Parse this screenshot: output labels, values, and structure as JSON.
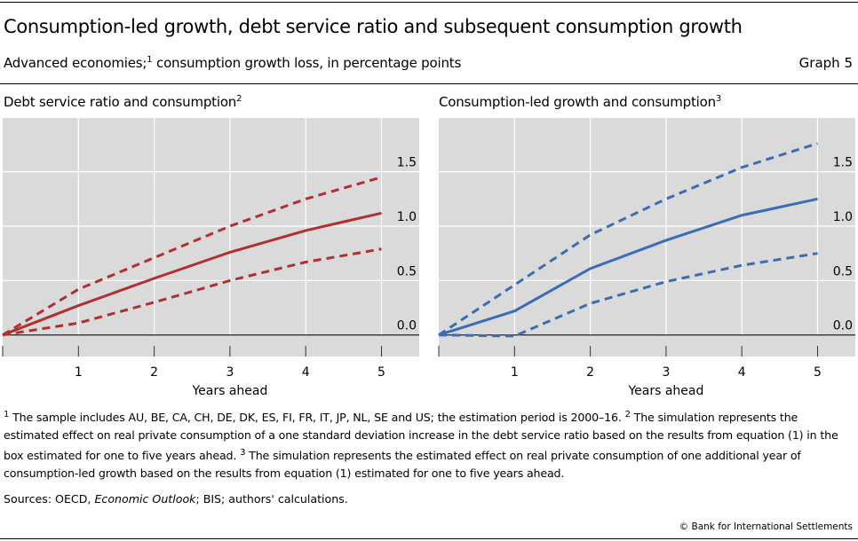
{
  "header": {
    "title": "Consumption-led growth, debt service ratio and subsequent consumption growth",
    "subtitle_pre": "Advanced economies;",
    "subtitle_sup": "1",
    "subtitle_post": " consumption growth loss, in percentage points",
    "graph_number": "Graph 5"
  },
  "chart_data": [
    {
      "type": "line",
      "title": "Debt service ratio and consumption",
      "title_sup": "2",
      "xlabel": "Years ahead",
      "ylabel": "",
      "x": [
        0,
        1,
        2,
        3,
        4,
        5
      ],
      "xticks": [
        "1",
        "2",
        "3",
        "4",
        "5"
      ],
      "yticks": [
        "0.0",
        "0.5",
        "1.0",
        "1.5"
      ],
      "ylim": [
        -0.1,
        2.0
      ],
      "xlim": [
        0,
        5.5
      ],
      "grid": true,
      "color": "#b03030",
      "series": [
        {
          "style": "solid",
          "values": [
            0,
            0.27,
            0.52,
            0.76,
            0.96,
            1.12
          ]
        },
        {
          "style": "dashed",
          "values": [
            0,
            0.42,
            0.71,
            1.0,
            1.25,
            1.45
          ]
        },
        {
          "style": "dashed",
          "values": [
            0,
            0.11,
            0.3,
            0.5,
            0.67,
            0.79
          ]
        }
      ]
    },
    {
      "type": "line",
      "title": "Consumption-led growth and consumption",
      "title_sup": "3",
      "xlabel": "Years ahead",
      "ylabel": "",
      "x": [
        0,
        1,
        2,
        3,
        4,
        5
      ],
      "xticks": [
        "1",
        "2",
        "3",
        "4",
        "5"
      ],
      "yticks": [
        "0.0",
        "0.5",
        "1.0",
        "1.5"
      ],
      "ylim": [
        -0.1,
        2.0
      ],
      "xlim": [
        0,
        5.5
      ],
      "grid": true,
      "color": "#3a6db5",
      "series": [
        {
          "style": "solid",
          "values": [
            0,
            0.22,
            0.61,
            0.87,
            1.1,
            1.25
          ]
        },
        {
          "style": "dashed",
          "values": [
            0,
            0.46,
            0.92,
            1.25,
            1.54,
            1.76
          ]
        },
        {
          "style": "dashed",
          "values": [
            0,
            -0.01,
            0.29,
            0.49,
            0.64,
            0.75
          ]
        }
      ]
    }
  ],
  "footnotes": {
    "n1": "1",
    "t1": " The sample includes AU, BE, CA, CH, DE, DK, ES, FI, FR, IT, JP, NL, SE and US; the estimation period is 2000–16.   ",
    "n2": "2",
    "t2": " The simulation represents the estimated effect on real private consumption of a one standard deviation increase in the debt service ratio based on the results from equation (1) in the box estimated for one to five years ahead.   ",
    "n3": "3",
    "t3": " The simulation represents the estimated effect on real private consumption of one additional year of consumption-led growth based on the results from equation (1) estimated for one to five years ahead."
  },
  "sources": {
    "pre": "Sources: OECD, ",
    "italic": "Economic Outlook",
    "post": "; BIS; authors' calculations."
  },
  "copyright": "© Bank for International Settlements"
}
